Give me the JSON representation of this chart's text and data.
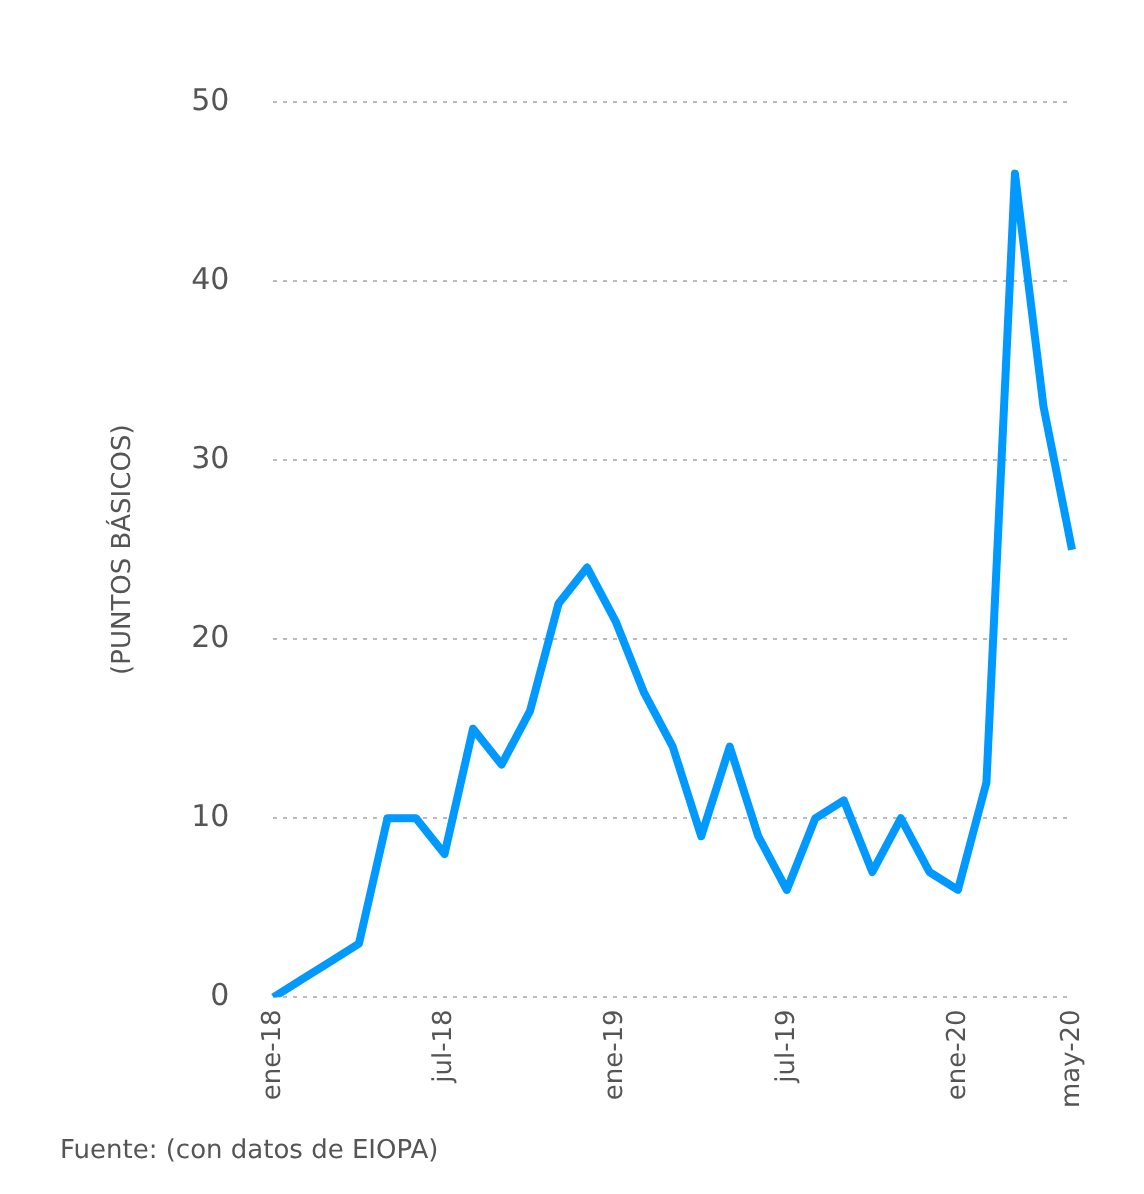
{
  "chart_data": {
    "type": "line",
    "ylabel": "(PUNTOS BÁSICOS)",
    "categories": [
      "ene-18",
      null,
      null,
      null,
      null,
      null,
      "jul-18",
      null,
      null,
      null,
      null,
      null,
      "ene-19",
      null,
      null,
      null,
      null,
      null,
      "jul-19",
      null,
      null,
      null,
      null,
      null,
      "ene-20",
      null,
      null,
      null,
      "may-20"
    ],
    "series": [
      {
        "color": "#0099ff",
        "values": [
          0,
          1,
          2,
          3,
          10,
          10,
          8,
          15,
          13,
          16,
          22,
          24,
          21,
          17,
          14,
          9,
          14,
          9,
          6,
          10,
          11,
          7,
          10,
          7,
          6,
          12,
          46,
          33,
          25
        ]
      }
    ],
    "ylim": [
      0,
      50
    ],
    "yticks": [
      0,
      10,
      20,
      30,
      40,
      50
    ],
    "grid": "y",
    "legend": false,
    "marker": "none",
    "line_style": "solid",
    "annotations": [
      "Fuente: (con datos de EIOPA)"
    ]
  }
}
